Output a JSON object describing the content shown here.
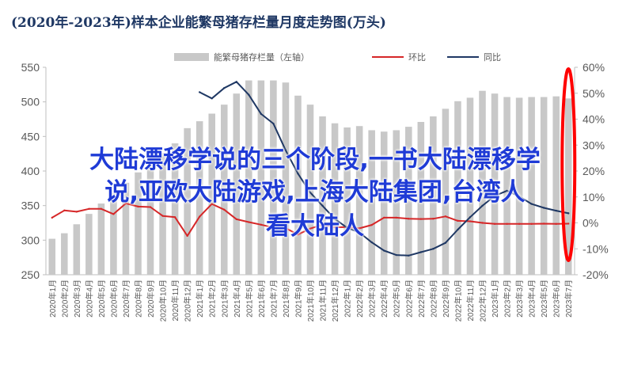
{
  "header": {
    "title": "(2020年-2023年)样本企业能繁母猪存栏量月度走势图(万头)"
  },
  "overlay": {
    "line1": "大陆漂移学说的三个阶段,一书大陆漂移学",
    "line2": "说,亚欧大陆游戏,上海大陆集团,台湾人",
    "line3": "看大陆人"
  },
  "colors": {
    "bar": "#c8c8c8",
    "mom_line": "#d62728",
    "yoy_line": "#1f3864",
    "highlight_ellipse": "#ff0000",
    "overlay_text": "#1f3bd6"
  },
  "chart_data": {
    "type": "bar",
    "categories": [
      "2020年1月",
      "2020年2月",
      "2020年3月",
      "2020年4月",
      "2020年5月",
      "2020年6月",
      "2020年7月",
      "2020年8月",
      "2020年9月",
      "2020年10月",
      "2020年11月",
      "2020年12月",
      "2021年1月",
      "2021年2月",
      "2021年3月",
      "2021年4月",
      "2021年5月",
      "2021年6月",
      "2021年7月",
      "2021年8月",
      "2021年9月",
      "2021年10月",
      "2021年11月",
      "2021年12月",
      "2022年1月",
      "2022年2月",
      "2022年3月",
      "2022年4月",
      "2022年5月",
      "2022年6月",
      "2022年7月",
      "2022年8月",
      "2022年9月",
      "2022年10月",
      "2022年11月",
      "2022年12月",
      "2023年1月",
      "2023年2月",
      "2023年3月",
      "2023年4月",
      "2023年5月",
      "2023年6月",
      "2023年7月"
    ],
    "series": [
      {
        "name": "能繁母猪存栏量（左轴）",
        "type": "bar",
        "axis": "left",
        "values": [
          302,
          310,
          323,
          338,
          353,
          368,
          383,
          398,
          414,
          426,
          440,
          462,
          472,
          483,
          496,
          512,
          531,
          531,
          531,
          528,
          509,
          496,
          479,
          469,
          463,
          465,
          459,
          457,
          459,
          464,
          471,
          479,
          490,
          501,
          506,
          516,
          512,
          507,
          506,
          507,
          507,
          508,
          505
        ]
      },
      {
        "name": "环比",
        "type": "line",
        "axis": "right",
        "values": [
          2.0,
          4.8,
          4.3,
          5.4,
          5.4,
          3.4,
          7.5,
          6.3,
          6.1,
          2.7,
          2.2,
          -5.0,
          2.4,
          7.3,
          5.1,
          1.4,
          0.3,
          -0.7,
          -1.8,
          -2.0,
          -4.5,
          -2.2,
          -0.7,
          -1.7,
          -1.6,
          -2.1,
          -0.8,
          2.0,
          2.0,
          1.6,
          1.5,
          1.6,
          2.5,
          0.8,
          0.6,
          0.0,
          -0.4,
          -0.4,
          -0.4,
          -0.4,
          -0.3,
          -0.4,
          -0.3
        ]
      },
      {
        "name": "同比",
        "type": "line",
        "axis": "right",
        "values": [
          null,
          null,
          null,
          null,
          null,
          null,
          null,
          null,
          null,
          null,
          null,
          null,
          50.4,
          48.0,
          52.0,
          54.4,
          49.4,
          42.0,
          38.3,
          28.0,
          19.0,
          11.7,
          6.6,
          1.5,
          -1.9,
          -3.7,
          -7.5,
          -10.7,
          -12.4,
          -12.6,
          -11.3,
          -10.0,
          -7.7,
          -2.6,
          2.2,
          6.6,
          10.4,
          12.4,
          10.2,
          7.3,
          5.8,
          4.7,
          3.7
        ]
      }
    ],
    "legend": [
      "能繁母猪存栏量（左轴）",
      "环比",
      "同比"
    ],
    "legend_position": "top-center",
    "y_left": {
      "ylim": [
        250,
        550
      ],
      "ticks": [
        250,
        300,
        350,
        400,
        450,
        500,
        550
      ]
    },
    "y_right": {
      "ylim": [
        -20,
        60
      ],
      "ticks": [
        "-20%",
        "-10%",
        "0%",
        "10%",
        "20%",
        "30%",
        "40%",
        "50%",
        "60%"
      ]
    },
    "grid": false
  }
}
